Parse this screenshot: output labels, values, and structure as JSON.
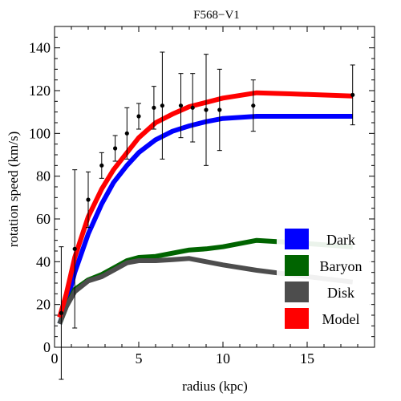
{
  "chart_data": {
    "type": "line",
    "title": "F568−V1",
    "xlabel": "radius (kpc)",
    "ylabel": "rotation speed (km/s)",
    "xlim": [
      0,
      19
    ],
    "ylim": [
      0,
      150
    ],
    "xticks": [
      0,
      5,
      10,
      15
    ],
    "yticks": [
      0,
      20,
      40,
      60,
      80,
      100,
      120,
      140
    ],
    "xtick_labels": [
      "0",
      "5",
      "10",
      "15"
    ],
    "ytick_labels": [
      "0",
      "20",
      "40",
      "60",
      "80",
      "100",
      "120",
      "140"
    ],
    "grid": false,
    "legend_position": "bottom-right",
    "series": [
      {
        "name": "Dark",
        "color": "#0000ff",
        "x": [
          0.3,
          0.7,
          1.2,
          2.0,
          2.8,
          3.5,
          4.3,
          5.0,
          6.0,
          7.0,
          8.0,
          9.0,
          10.0,
          12.0,
          14.0,
          17.7
        ],
        "y": [
          11,
          20,
          35,
          53,
          67,
          77,
          85,
          91,
          97,
          101,
          103.5,
          105.5,
          107,
          108,
          108,
          108
        ]
      },
      {
        "name": "Baryon",
        "color": "#006400",
        "x": [
          0.3,
          0.7,
          1.2,
          2.0,
          2.8,
          3.5,
          4.3,
          5.0,
          6.0,
          7.0,
          8.0,
          9.0,
          10.0,
          12.0,
          14.0,
          17.7
        ],
        "y": [
          11,
          19,
          27,
          31.5,
          34,
          37,
          40.5,
          42,
          42.5,
          44,
          45.5,
          46,
          47,
          50,
          49,
          47
        ]
      },
      {
        "name": "Disk",
        "color": "#4d4d4d",
        "x": [
          0.3,
          0.7,
          1.2,
          2.0,
          2.8,
          3.5,
          4.3,
          5.0,
          6.0,
          7.0,
          8.0,
          9.0,
          10.0,
          12.0,
          14.0,
          17.7
        ],
        "y": [
          11,
          19,
          26,
          31,
          33,
          36,
          39.5,
          40.5,
          40.5,
          41,
          41.5,
          40,
          38.5,
          36,
          34,
          30.5
        ]
      },
      {
        "name": "Model",
        "color": "#ff0000",
        "x": [
          0.3,
          0.7,
          1.2,
          2.0,
          2.8,
          3.5,
          4.3,
          5.0,
          6.0,
          7.0,
          8.0,
          9.0,
          10.0,
          12.0,
          14.0,
          17.7
        ],
        "y": [
          14,
          25,
          42,
          61,
          74,
          83,
          91,
          98,
          105,
          109,
          112.5,
          114.5,
          116.5,
          119,
          118.5,
          117.5
        ]
      }
    ],
    "observations": {
      "name": "",
      "color": "#000000",
      "points": [
        {
          "x": 0.4,
          "y": 16,
          "err": 31
        },
        {
          "x": 1.2,
          "y": 46,
          "err": 37
        },
        {
          "x": 2.0,
          "y": 69,
          "err": 13
        },
        {
          "x": 2.8,
          "y": 85,
          "err": 6
        },
        {
          "x": 3.6,
          "y": 93,
          "err": 6
        },
        {
          "x": 4.3,
          "y": 100,
          "err": 12
        },
        {
          "x": 5.0,
          "y": 108,
          "err": 6
        },
        {
          "x": 5.9,
          "y": 112,
          "err": 10
        },
        {
          "x": 6.4,
          "y": 113,
          "err": 25
        },
        {
          "x": 7.5,
          "y": 113,
          "err": 15
        },
        {
          "x": 8.2,
          "y": 112,
          "err": 16
        },
        {
          "x": 9.0,
          "y": 111,
          "err": 26
        },
        {
          "x": 9.8,
          "y": 111,
          "err": 19
        },
        {
          "x": 11.8,
          "y": 113,
          "err": 12
        },
        {
          "x": 17.7,
          "y": 118,
          "err": 14
        }
      ]
    }
  }
}
